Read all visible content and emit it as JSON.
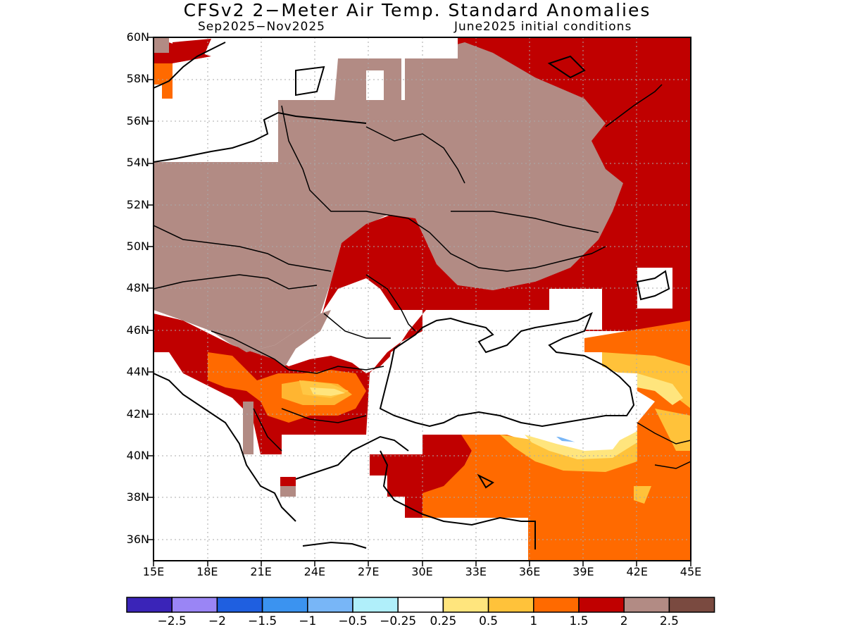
{
  "title": "CFSv2 2−Meter Air Temp. Standard Anomalies",
  "period": "Sep2025−Nov2025",
  "initial_conditions": "June2025 initial conditions",
  "lat_labels": [
    "60N",
    "58N",
    "56N",
    "54N",
    "52N",
    "50N",
    "48N",
    "46N",
    "44N",
    "42N",
    "40N",
    "38N",
    "36N"
  ],
  "lon_labels": [
    "15E",
    "18E",
    "21E",
    "24E",
    "27E",
    "30E",
    "33E",
    "36E",
    "39E",
    "42E",
    "45E"
  ],
  "colorbar": {
    "colors": [
      "#3a24b8",
      "#9a85f5",
      "#1f5fe0",
      "#3b93f0",
      "#78b6f7",
      "#b0effa",
      "#ffffff",
      "#ffe57d",
      "#ffc23a",
      "#ff6a00",
      "#c00000",
      "#b28b84",
      "#7a4a40"
    ],
    "labels": [
      "−2.5",
      "−2",
      "−1.5",
      "−1",
      "−0.5",
      "−0.25",
      "0.25",
      "0.5",
      "1",
      "1.5",
      "2",
      "2.5"
    ]
  }
}
